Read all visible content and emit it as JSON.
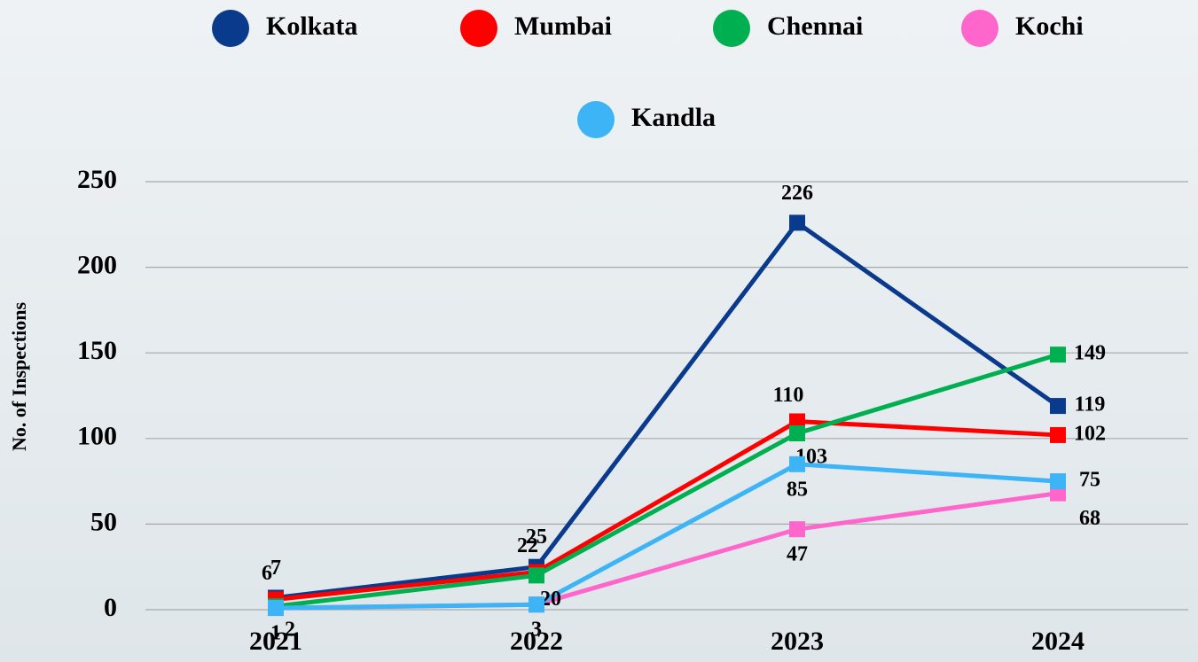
{
  "chart_data": {
    "type": "line",
    "y_label": "No. of Inspections",
    "categories": [
      "2021",
      "2022",
      "2023",
      "2024"
    ],
    "series": [
      {
        "name": "Kolkata",
        "color": "#0a3a8c",
        "values": [
          7,
          25,
          226,
          119
        ]
      },
      {
        "name": "Mumbai",
        "color": "#ff0000",
        "values": [
          6,
          22,
          110,
          102
        ]
      },
      {
        "name": "Chennai",
        "color": "#00b050",
        "values": [
          2,
          20,
          103,
          149
        ]
      },
      {
        "name": "Kochi",
        "color": "#ff66cc",
        "values": [
          1,
          3,
          47,
          68
        ]
      },
      {
        "name": "Kandla",
        "color": "#3cb4f5",
        "values": [
          1,
          3,
          85,
          75
        ]
      }
    ],
    "ylim": [
      0,
      250
    ],
    "yticks": [
      0,
      50,
      100,
      150,
      200,
      250
    ],
    "grid": true
  }
}
